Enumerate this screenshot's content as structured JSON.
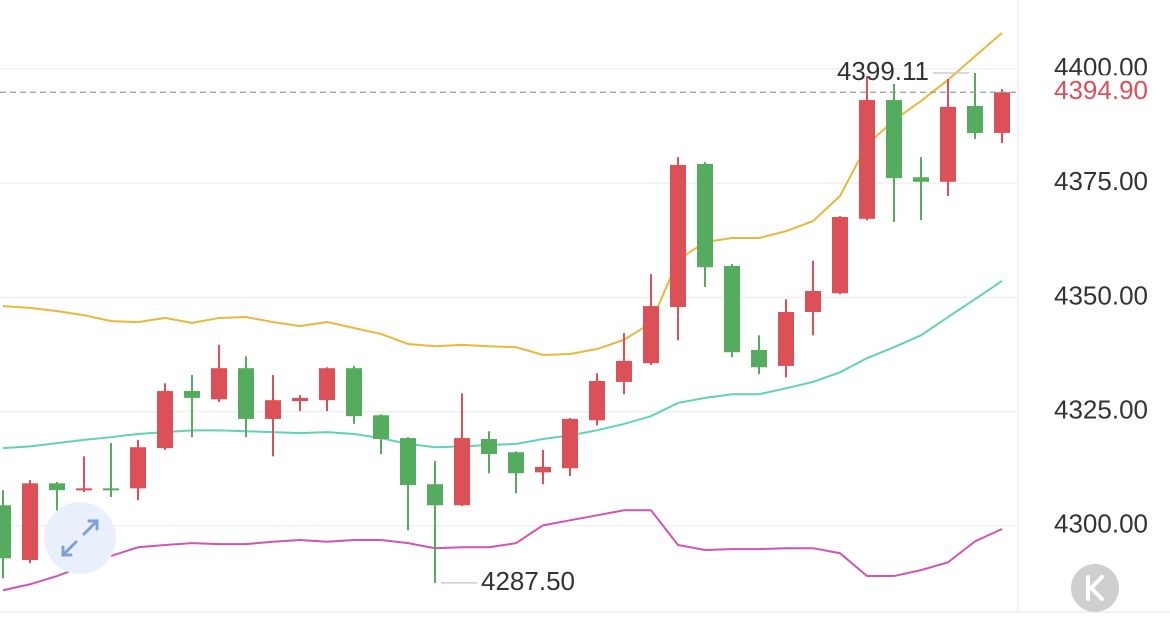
{
  "chart_data": {
    "type": "candlestick",
    "ylim": [
      4279.6,
      4415.1
    ],
    "yticks": [
      {
        "value": 4300,
        "label": "4300.00"
      },
      {
        "value": 4325,
        "label": "4325.00"
      },
      {
        "value": 4350,
        "label": "4350.00"
      },
      {
        "value": 4375,
        "label": "4375.00"
      },
      {
        "value": 4400,
        "label": "4400.00"
      }
    ],
    "grid": true,
    "up_color": "#dc5158",
    "down_color": "#55ab5e",
    "open": [
      4304.5,
      4292.5,
      4309.3,
      4307.8,
      4308.2,
      4308.2,
      4317.0,
      4329.5,
      4327.7,
      4334.5,
      4323.4,
      4327.3,
      4327.5,
      4334.5,
      4324.2,
      4319.2,
      4309.1,
      4304.5,
      4319.0,
      4316.1,
      4311.7,
      4312.6,
      4323.1,
      4331.5,
      4335.6,
      4347.9,
      4379.2,
      4356.9,
      4338.5,
      4335.0,
      4346.8,
      4350.9,
      4367.2,
      4393.2,
      4376.3,
      4375.3,
      4391.9,
      4386.0
    ],
    "high": [
      4307.8,
      4310.0,
      4309.6,
      4315.2,
      4318.1,
      4318.8,
      4331.2,
      4333.0,
      4339.6,
      4337.1,
      4333.0,
      4328.6,
      4334.7,
      4335.0,
      4324.4,
      4319.4,
      4314.2,
      4329.0,
      4320.7,
      4316.3,
      4316.6,
      4323.6,
      4333.4,
      4342.2,
      4355.1,
      4380.7,
      4379.6,
      4357.3,
      4341.7,
      4349.6,
      4358.0,
      4367.8,
      4398.5,
      4396.7,
      4380.7,
      4397.8,
      4399.11,
      4395.6
    ],
    "low": [
      4288.5,
      4291.8,
      4300.8,
      4307.4,
      4306.3,
      4305.6,
      4316.6,
      4319.4,
      4327.1,
      4319.4,
      4315.2,
      4325.1,
      4325.1,
      4322.3,
      4315.7,
      4299.0,
      4287.5,
      4304.3,
      4311.5,
      4307.1,
      4309.1,
      4310.9,
      4322.0,
      4328.8,
      4335.2,
      4340.6,
      4352.3,
      4336.9,
      4333.2,
      4332.5,
      4341.7,
      4350.7,
      4366.9,
      4366.5,
      4366.9,
      4372.2,
      4384.7,
      4383.8
    ],
    "close": [
      4292.9,
      4309.3,
      4307.8,
      4308.2,
      4307.8,
      4317.2,
      4329.5,
      4328.0,
      4334.5,
      4323.4,
      4327.5,
      4328.0,
      4334.5,
      4324.0,
      4319.0,
      4308.9,
      4304.5,
      4319.2,
      4315.7,
      4311.5,
      4312.9,
      4323.4,
      4331.7,
      4336.1,
      4348.1,
      4379.0,
      4356.6,
      4338.0,
      4334.7,
      4346.8,
      4351.4,
      4367.6,
      4393.2,
      4376.1,
      4375.3,
      4391.7,
      4386.0,
      4394.9
    ],
    "series": [
      {
        "color": "#e9b73c",
        "values": [
          4348.1,
          4347.7,
          4347.0,
          4346.1,
          4344.8,
          4344.6,
          4345.5,
          4344.4,
          4345.5,
          4345.7,
          4344.6,
          4343.7,
          4344.6,
          4343.3,
          4342.0,
          4339.8,
          4339.3,
          4339.6,
          4339.3,
          4339.1,
          4337.4,
          4337.6,
          4338.7,
          4340.7,
          4344.4,
          4358.2,
          4362.1,
          4363.0,
          4363.0,
          4364.5,
          4366.7,
          4372.2,
          4383.4,
          4388.8,
          4393.0,
          4397.6,
          4402.8,
          4407.9
        ]
      },
      {
        "color": "#5fd3b3",
        "values": [
          4317.0,
          4317.4,
          4318.1,
          4318.8,
          4319.4,
          4320.1,
          4320.5,
          4320.9,
          4320.9,
          4320.7,
          4320.5,
          4320.3,
          4320.5,
          4320.1,
          4319.2,
          4317.9,
          4317.2,
          4317.4,
          4317.7,
          4317.9,
          4319.0,
          4319.8,
          4320.9,
          4322.3,
          4324.0,
          4326.9,
          4328.0,
          4328.8,
          4328.8,
          4330.1,
          4331.5,
          4333.6,
          4336.7,
          4339.1,
          4341.7,
          4345.7,
          4349.6,
          4353.6
        ]
      },
      {
        "color": "#d153b6",
        "values": [
          4285.9,
          4287.2,
          4289.0,
          4291.2,
          4293.4,
          4295.3,
          4295.8,
          4296.2,
          4296.0,
          4296.0,
          4296.5,
          4296.9,
          4296.5,
          4296.9,
          4296.9,
          4296.2,
          4295.1,
          4295.3,
          4295.3,
          4296.2,
          4300.1,
          4301.2,
          4302.3,
          4303.4,
          4303.4,
          4295.8,
          4294.7,
          4294.9,
          4294.9,
          4295.1,
          4295.1,
          4294.0,
          4289.0,
          4289.0,
          4290.3,
          4292.0,
          4296.6,
          4299.3
        ]
      }
    ],
    "annotations": {
      "max": {
        "value": 4399.11,
        "label": "4399.11"
      },
      "min": {
        "value": 4287.5,
        "label": "4287.50"
      },
      "last_price": {
        "value": 4394.9,
        "label": "4394.90"
      }
    }
  }
}
